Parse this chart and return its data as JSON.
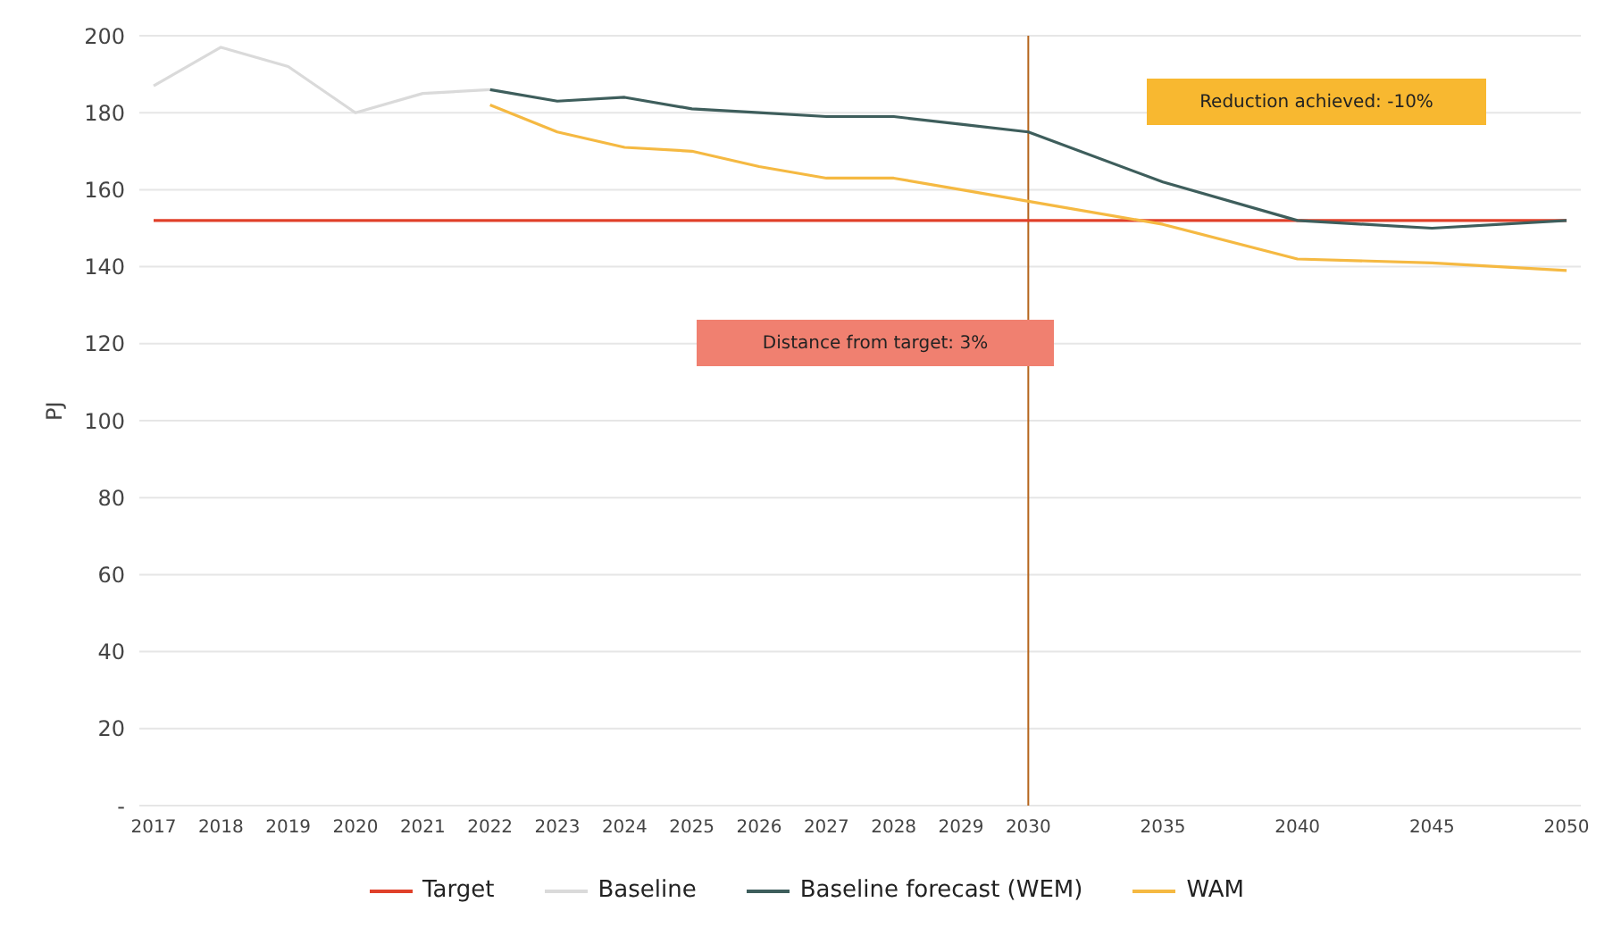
{
  "chart_data": {
    "type": "line",
    "ylabel": "PJ",
    "categories": [
      "2017",
      "2018",
      "2019",
      "2020",
      "2021",
      "2022",
      "2023",
      "2024",
      "2025",
      "2026",
      "2027",
      "2028",
      "2029",
      "2030",
      null,
      "2035",
      null,
      "2040",
      null,
      "2045",
      null,
      "2050"
    ],
    "series": [
      {
        "name": "Target",
        "color": "#e0402a",
        "values": [
          152,
          152,
          152,
          152,
          152,
          152,
          152,
          152,
          152,
          152,
          152,
          152,
          152,
          152,
          null,
          152,
          null,
          152,
          null,
          152,
          null,
          152
        ]
      },
      {
        "name": "Baseline",
        "color": "#dadada",
        "values": [
          187,
          197,
          192,
          180,
          185,
          186,
          null,
          null,
          null,
          null,
          null,
          null,
          null,
          null,
          null,
          null,
          null,
          null,
          null,
          null,
          null,
          null
        ]
      },
      {
        "name": "Baseline forecast (WEM)",
        "color": "#3e5e5c",
        "values": [
          null,
          null,
          null,
          null,
          null,
          186,
          183,
          184,
          181,
          180,
          179,
          179,
          177,
          175,
          null,
          162,
          null,
          152,
          null,
          150,
          null,
          152
        ]
      },
      {
        "name": "WAM",
        "color": "#f5b942",
        "values": [
          null,
          null,
          null,
          null,
          null,
          182,
          175,
          171,
          170,
          166,
          163,
          163,
          160,
          157,
          null,
          151,
          null,
          142,
          null,
          141,
          null,
          139
        ]
      }
    ],
    "ylim": [
      0,
      200
    ],
    "yticks": [
      {
        "value": 0,
        "label": "-"
      },
      20,
      40,
      60,
      80,
      100,
      120,
      140,
      160,
      180,
      200
    ],
    "ref_lines": [
      {
        "axis": "x",
        "value": "2030",
        "color": "#b5651d"
      }
    ],
    "annotations": [
      "Reduction achieved: -10%",
      "Distance from target: 3%"
    ],
    "grid": "y",
    "legend": "bottom",
    "marker": "none"
  }
}
